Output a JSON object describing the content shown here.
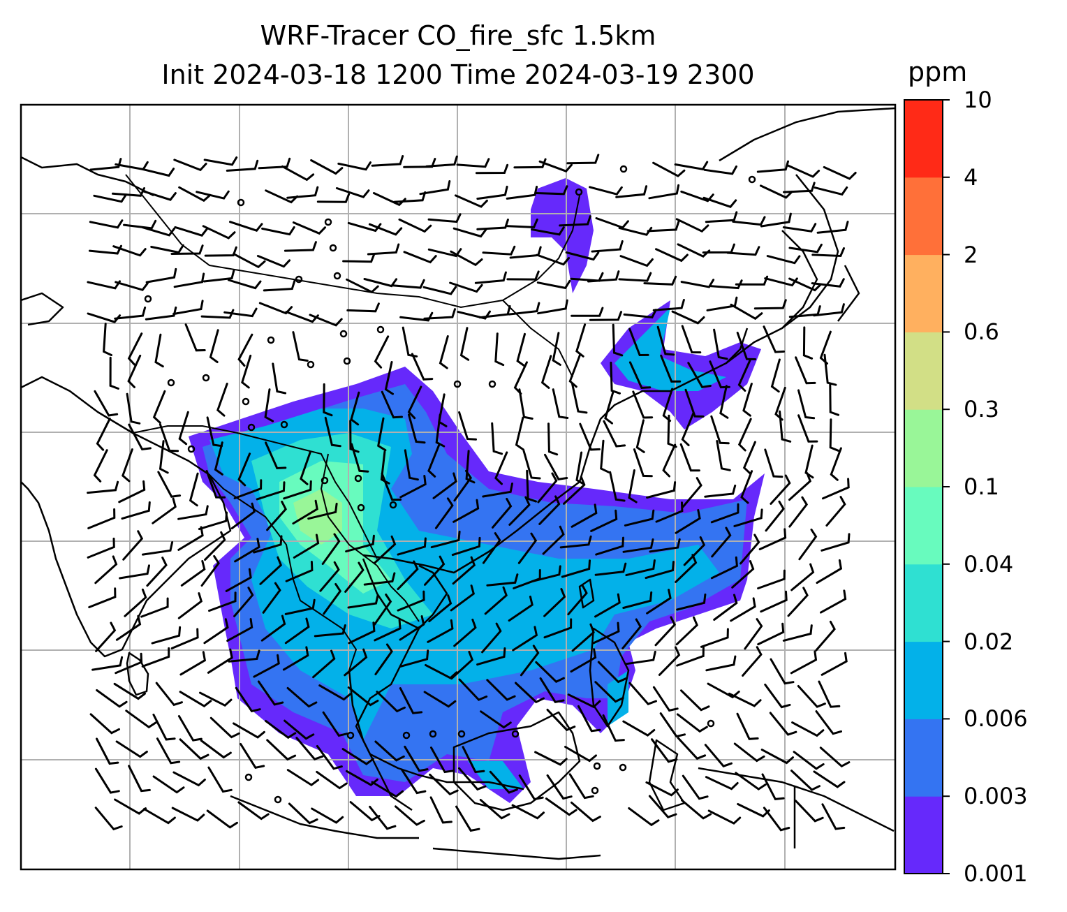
{
  "title_line1": "WRF-Tracer CO_fire_sfc 1.5km",
  "title_line2": "Init 2024-03-18 1200 Time 2024-03-19 2300",
  "colorbar": {
    "unit": "ppm",
    "levels": [
      "0.001",
      "0.003",
      "0.006",
      "0.02",
      "0.04",
      "0.1",
      "0.3",
      "0.6",
      "2",
      "4",
      "10"
    ],
    "colors": [
      "#6629fb",
      "#3474f2",
      "#03b1e9",
      "#2fe0d2",
      "#68fbbe",
      "#99f698",
      "#d2df86",
      "#ffb05f",
      "#ff7039",
      "#ff2a17"
    ]
  },
  "map": {
    "gridlines": "on",
    "features": [
      "coastlines",
      "country-borders",
      "wind-barbs",
      "CO-concentration-fill"
    ]
  }
}
